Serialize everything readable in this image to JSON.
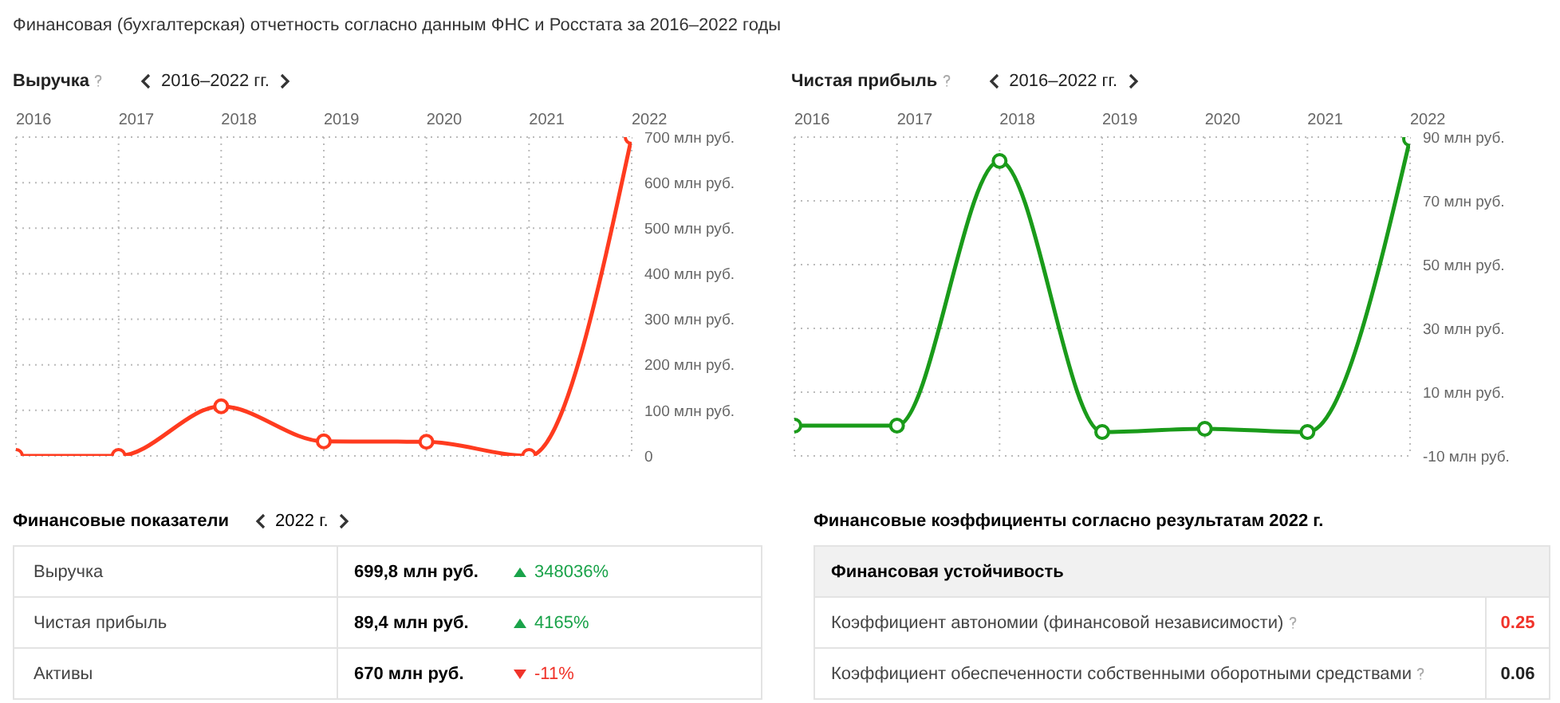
{
  "chart_data": [
    {
      "type": "other",
      "title": "Финансовая (бухгалтерская) отчетность согласно данным ФНС и Росстата за 2016–2022 годы"
    },
    {
      "type": "line",
      "title": "Выручка",
      "subtitle": "2016–2022 гг.",
      "categories": [
        "2016",
        "2017",
        "2018",
        "2019",
        "2020",
        "2021",
        "2022"
      ],
      "series": [
        {
          "color": "#ff3b1f",
          "values": [
            0,
            0,
            109,
            32,
            31,
            0,
            699.8
          ]
        }
      ],
      "ylim": [
        0,
        700
      ],
      "yticks": [
        0,
        {
          "value": 100,
          "label": "100 млн руб."
        },
        {
          "value": 200,
          "label": "200 млн руб."
        },
        {
          "value": 300,
          "label": "300 млн руб."
        },
        {
          "value": 400,
          "label": "400 млн руб."
        },
        {
          "value": 500,
          "label": "500 млн руб."
        },
        {
          "value": 600,
          "label": "600 млн руб."
        },
        {
          "value": 700,
          "label": "700 млн руб."
        }
      ],
      "grid": true,
      "marker": "circle",
      "line_style": "solid"
    },
    {
      "type": "line",
      "title": "Чистая прибыль",
      "subtitle": "2016–2022 гг.",
      "categories": [
        "2016",
        "2017",
        "2018",
        "2019",
        "2020",
        "2021",
        "2022"
      ],
      "series": [
        {
          "color": "#1a9b1a",
          "values": [
            -0.5,
            -0.5,
            82.5,
            -2.5,
            -1.5,
            -2.5,
            89.4
          ]
        }
      ],
      "ylim": [
        -10,
        90
      ],
      "yticks": [
        {
          "value": -10,
          "label": "-10 млн руб."
        },
        {
          "value": 10,
          "label": "10 млн руб."
        },
        {
          "value": 30,
          "label": "30 млн руб."
        },
        {
          "value": 50,
          "label": "50 млн руб."
        },
        {
          "value": 70,
          "label": "70 млн руб."
        },
        {
          "value": 90,
          "label": "90 млн руб."
        }
      ],
      "grid": true,
      "marker": "circle",
      "line_style": "solid"
    },
    {
      "type": "other",
      "title": "Финансовые показатели",
      "subtitle": "2022 г.",
      "categories": [
        "Выручка",
        "Чистая прибыль",
        "Активы"
      ],
      "value_labels": [
        "699,8 млн руб.",
        "89,4 млн руб.",
        "670 млн руб."
      ],
      "annotations": [
        "348036%",
        "4165%",
        "-11%"
      ],
      "colors": [
        "#1aa34a",
        "#1aa34a",
        "#f0332a"
      ]
    },
    {
      "type": "other",
      "title": "Финансовые коэффициенты согласно результатам 2022 г.",
      "subtitle": "Финансовая устойчивость",
      "categories": [
        "Коэффициент автономии (финансовой независимости)",
        "Коэффициент обеспеченности собственными оборотными средствами"
      ],
      "value_labels": [
        "0.25",
        "0.06"
      ],
      "colors": [
        "#f0332a",
        "#222222"
      ]
    }
  ]
}
